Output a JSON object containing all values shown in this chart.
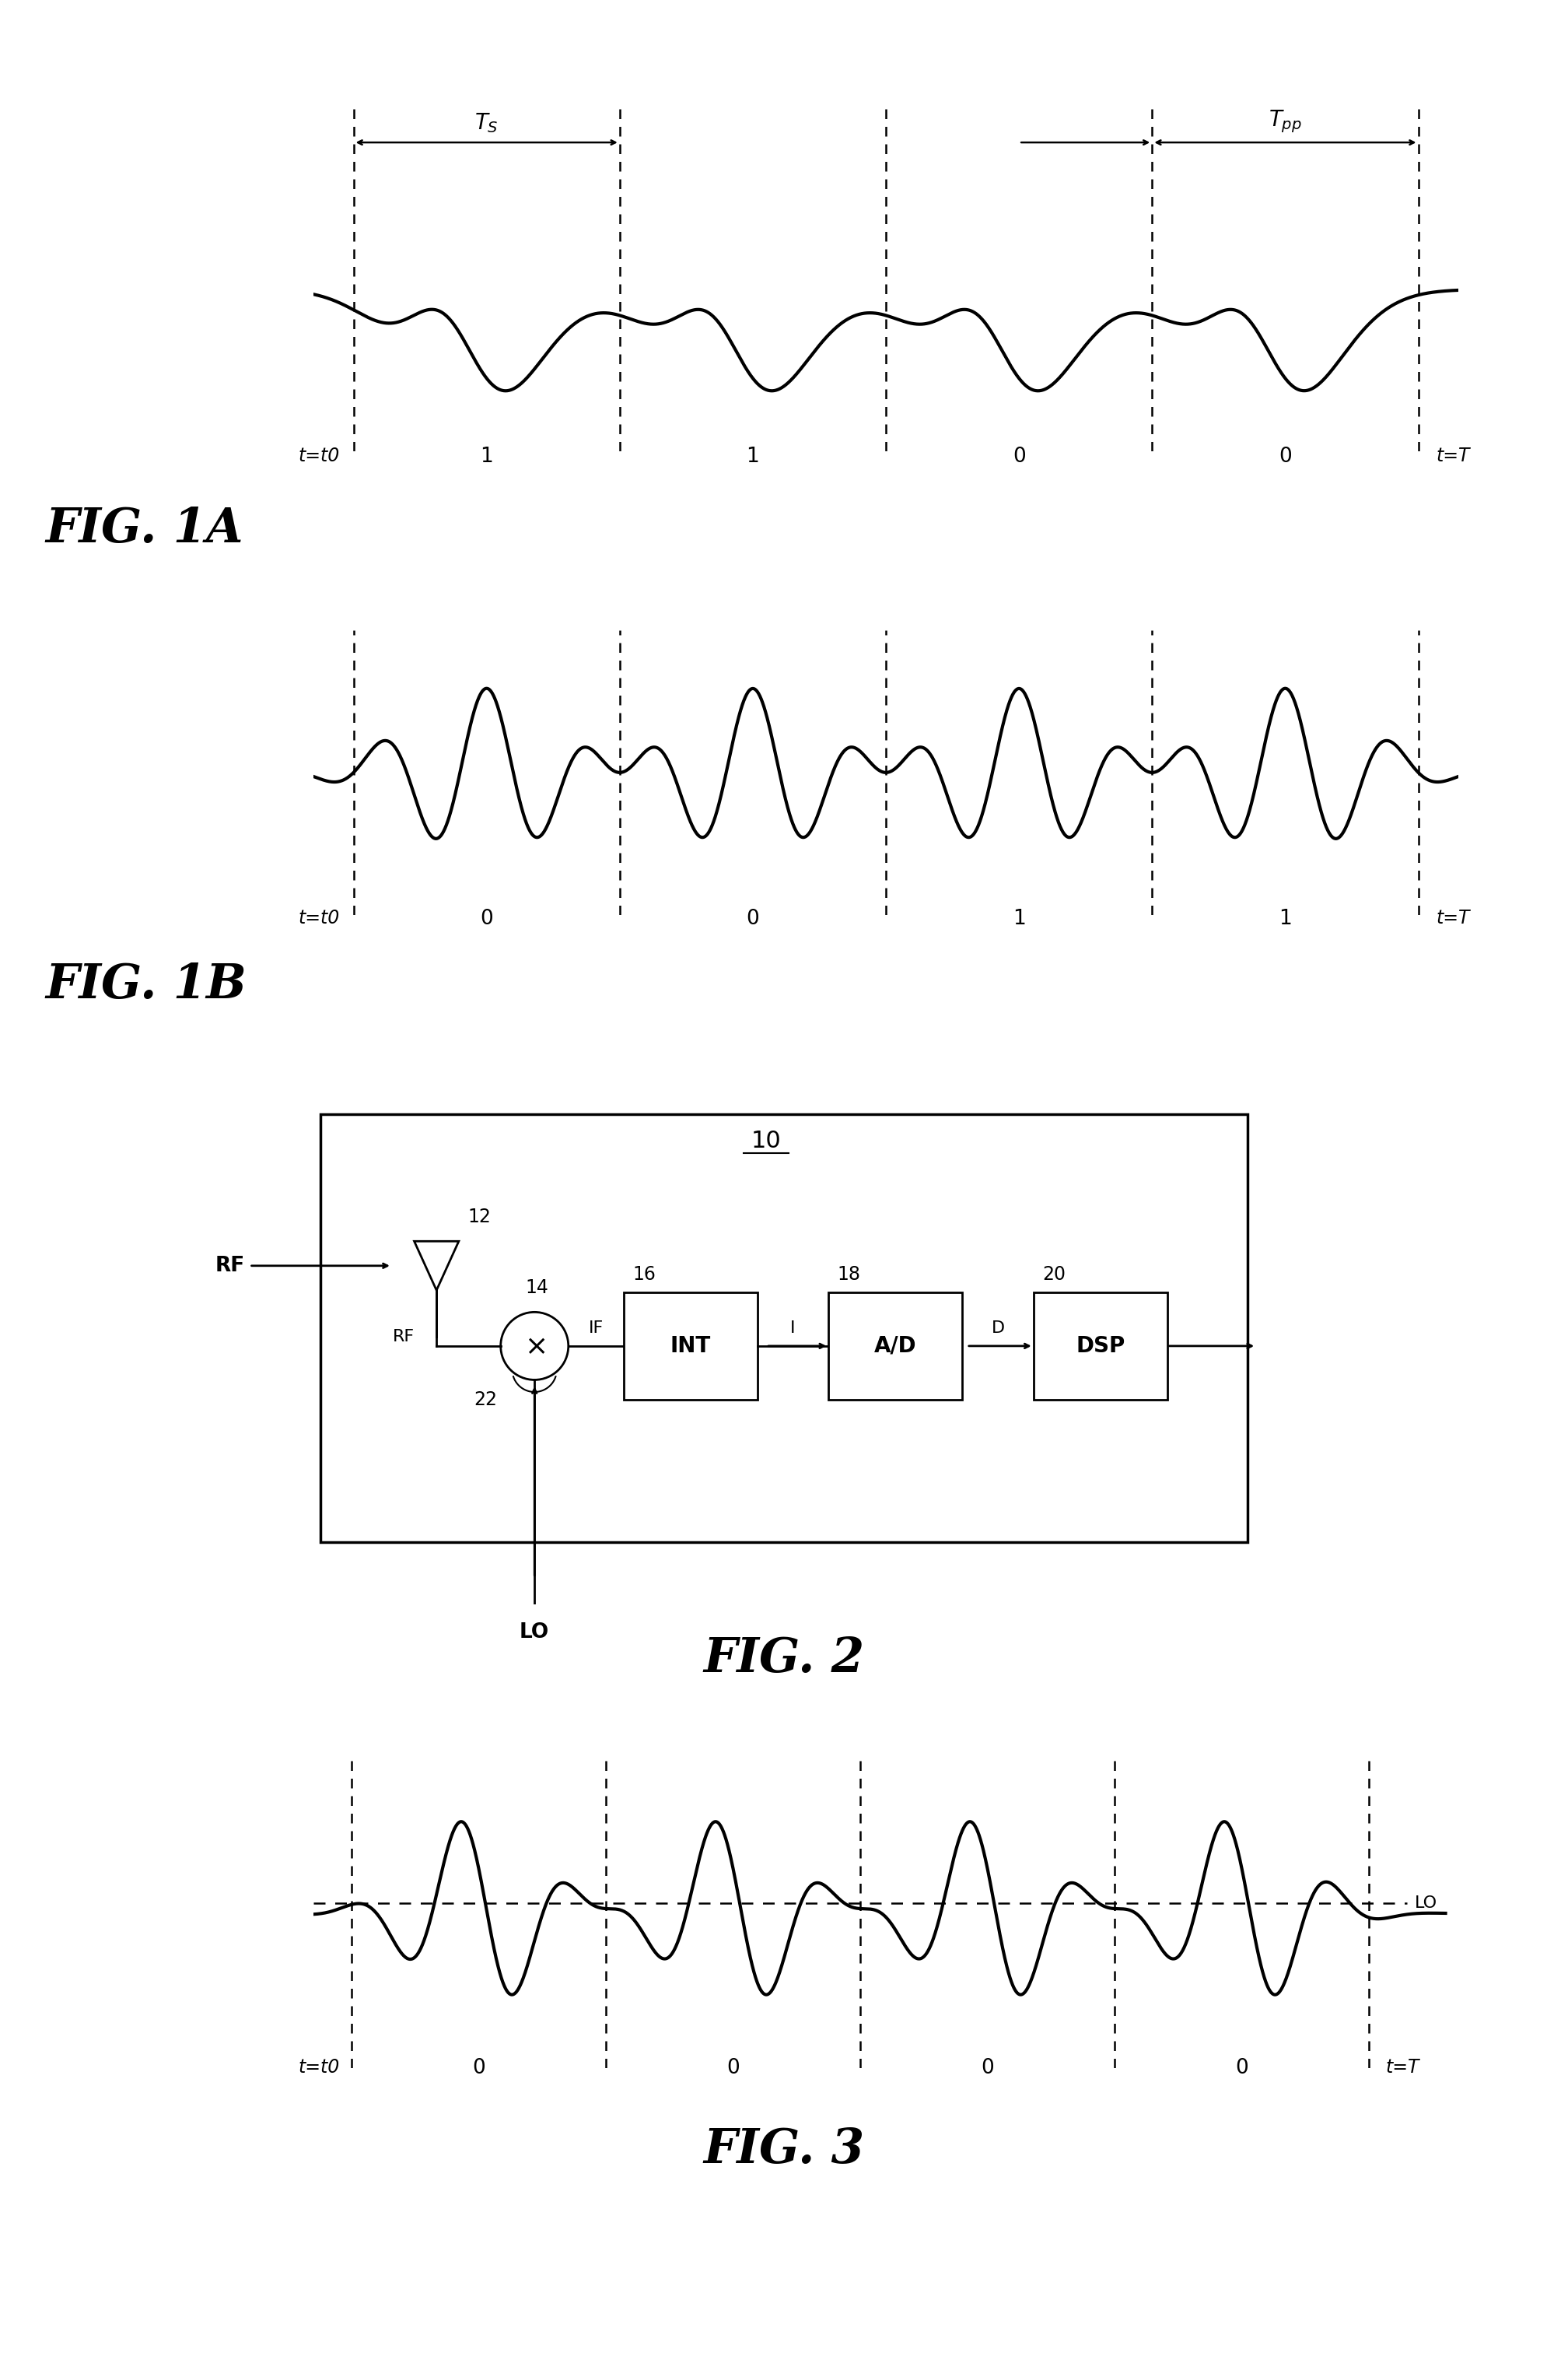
{
  "bg_color": "#ffffff",
  "fig1a_label": "FIG. 1A",
  "fig1b_label": "FIG. 1B",
  "fig2_label": "FIG. 2",
  "fig3_label": "FIG. 3",
  "line_color": "#000000",
  "dashed_color": "#000000",
  "fig1a_bits": [
    "t=t0",
    "1",
    "1",
    "0",
    "0",
    "t=T"
  ],
  "fig1b_bits": [
    "t=t0",
    "0",
    "0",
    "1",
    "1",
    "t=T"
  ],
  "fig3_bits": [
    "t=t0",
    "0",
    "0",
    "0",
    "0",
    "t=T"
  ]
}
